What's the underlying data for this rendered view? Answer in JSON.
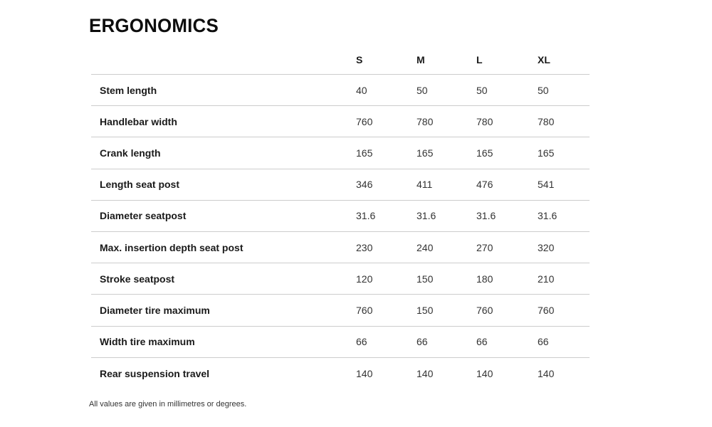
{
  "page": {
    "title": "ERGONOMICS",
    "footnote": "All values are given in millimetres or degrees."
  },
  "colors": {
    "text_primary": "#1a1a1a",
    "text_secondary": "#333333",
    "divider": "#cccccc",
    "background": "#ffffff"
  },
  "table": {
    "columns": [
      "S",
      "M",
      "L",
      "XL"
    ],
    "rows": [
      {
        "label": "Stem length",
        "values": [
          "40",
          "50",
          "50",
          "50"
        ]
      },
      {
        "label": "Handlebar width",
        "values": [
          "760",
          "780",
          "780",
          "780"
        ]
      },
      {
        "label": "Crank length",
        "values": [
          "165",
          "165",
          "165",
          "165"
        ]
      },
      {
        "label": "Length seat post",
        "values": [
          "346",
          "411",
          "476",
          "541"
        ]
      },
      {
        "label": "Diameter seatpost",
        "values": [
          "31.6",
          "31.6",
          "31.6",
          "31.6"
        ]
      },
      {
        "label": "Max. insertion depth seat post",
        "values": [
          "230",
          "240",
          "270",
          "320"
        ]
      },
      {
        "label": "Stroke seatpost",
        "values": [
          "120",
          "150",
          "180",
          "210"
        ]
      },
      {
        "label": "Diameter tire maximum",
        "values": [
          "760",
          "150",
          "760",
          "760"
        ]
      },
      {
        "label": "Width tire maximum",
        "values": [
          "66",
          "66",
          "66",
          "66"
        ]
      },
      {
        "label": "Rear suspension travel",
        "values": [
          "140",
          "140",
          "140",
          "140"
        ]
      }
    ]
  }
}
